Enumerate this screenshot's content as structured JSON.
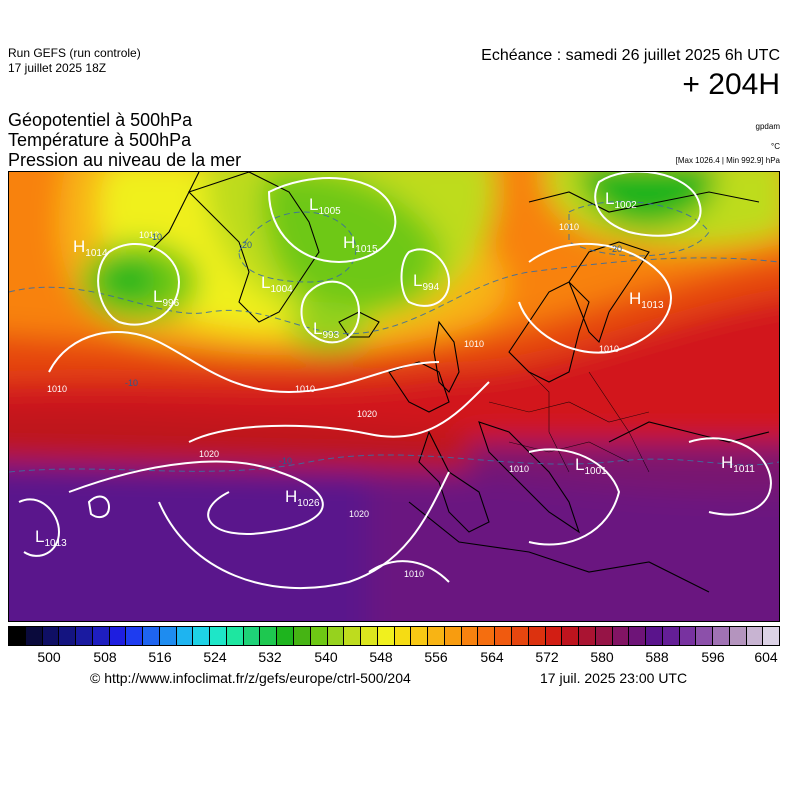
{
  "header": {
    "run_title": "Run GEFS (run controle)",
    "run_date": "17 juillet 2025 18Z",
    "valid_line": "Echéance : samedi 26 juillet 2025 6h UTC",
    "lead_time": "+ 204H"
  },
  "fields": [
    "Géopotentiel à 500hPa",
    "Température à 500hPa",
    "Pression au niveau de la mer"
  ],
  "units": {
    "geopotential": "gpdam",
    "temperature": "°C",
    "pressure_extremes": "[Max 1026.4 | Min 992.9] hPa"
  },
  "map": {
    "pressure_centers": [
      {
        "type": "H",
        "value": "1014"
      },
      {
        "type": "L",
        "value": "1005"
      },
      {
        "type": "L",
        "value": "1002"
      },
      {
        "type": "H",
        "value": "1015"
      },
      {
        "type": "L",
        "value": "1004"
      },
      {
        "type": "L",
        "value": "994"
      },
      {
        "type": "L",
        "value": "993"
      },
      {
        "type": "L",
        "value": "996"
      },
      {
        "type": "H",
        "value": "1013"
      },
      {
        "type": "L",
        "value": "1001"
      },
      {
        "type": "H",
        "value": "1011"
      },
      {
        "type": "H",
        "value": "1026"
      },
      {
        "type": "L",
        "value": "1013"
      }
    ],
    "isobar_labels": [
      "1010",
      "1010",
      "1010",
      "1010",
      "1010",
      "1010",
      "1010",
      "1020",
      "1020",
      "1020",
      "1010"
    ],
    "temperature_labels": [
      "-10",
      "-20",
      "-20",
      "-10",
      "-10"
    ]
  },
  "colorbar": {
    "colors": [
      "#000000",
      "#0a0a3c",
      "#0f0f64",
      "#141480",
      "#1a1aa0",
      "#1e1ec0",
      "#1e1ee0",
      "#1e3cf0",
      "#1e64f0",
      "#1e8cf0",
      "#1eb4f0",
      "#1ed2e6",
      "#1ee6c8",
      "#1ee6a0",
      "#1ed278",
      "#1ec850",
      "#1eb41e",
      "#46b414",
      "#6ec814",
      "#96d21e",
      "#bedc1e",
      "#dce61e",
      "#f0f01e",
      "#f5dc14",
      "#f8c814",
      "#f8b414",
      "#f89c0f",
      "#f8820f",
      "#f56e0f",
      "#f05a0f",
      "#e6460f",
      "#dc320f",
      "#d21e14",
      "#be141e",
      "#aa1432",
      "#961446",
      "#821464",
      "#6e1478",
      "#5a148c",
      "#641e96",
      "#7832a0",
      "#8c50aa",
      "#a072b4",
      "#b494be",
      "#c8b4d2",
      "#dcd2e6"
    ],
    "ticks": [
      "500",
      "508",
      "516",
      "524",
      "532",
      "540",
      "548",
      "556",
      "564",
      "572",
      "580",
      "588",
      "596",
      "604"
    ]
  },
  "footer": {
    "credit_url": "© http://www.infoclimat.fr/z/gefs/europe/ctrl-500/204",
    "credit_time": "17 juil. 2025 23:00 UTC"
  }
}
